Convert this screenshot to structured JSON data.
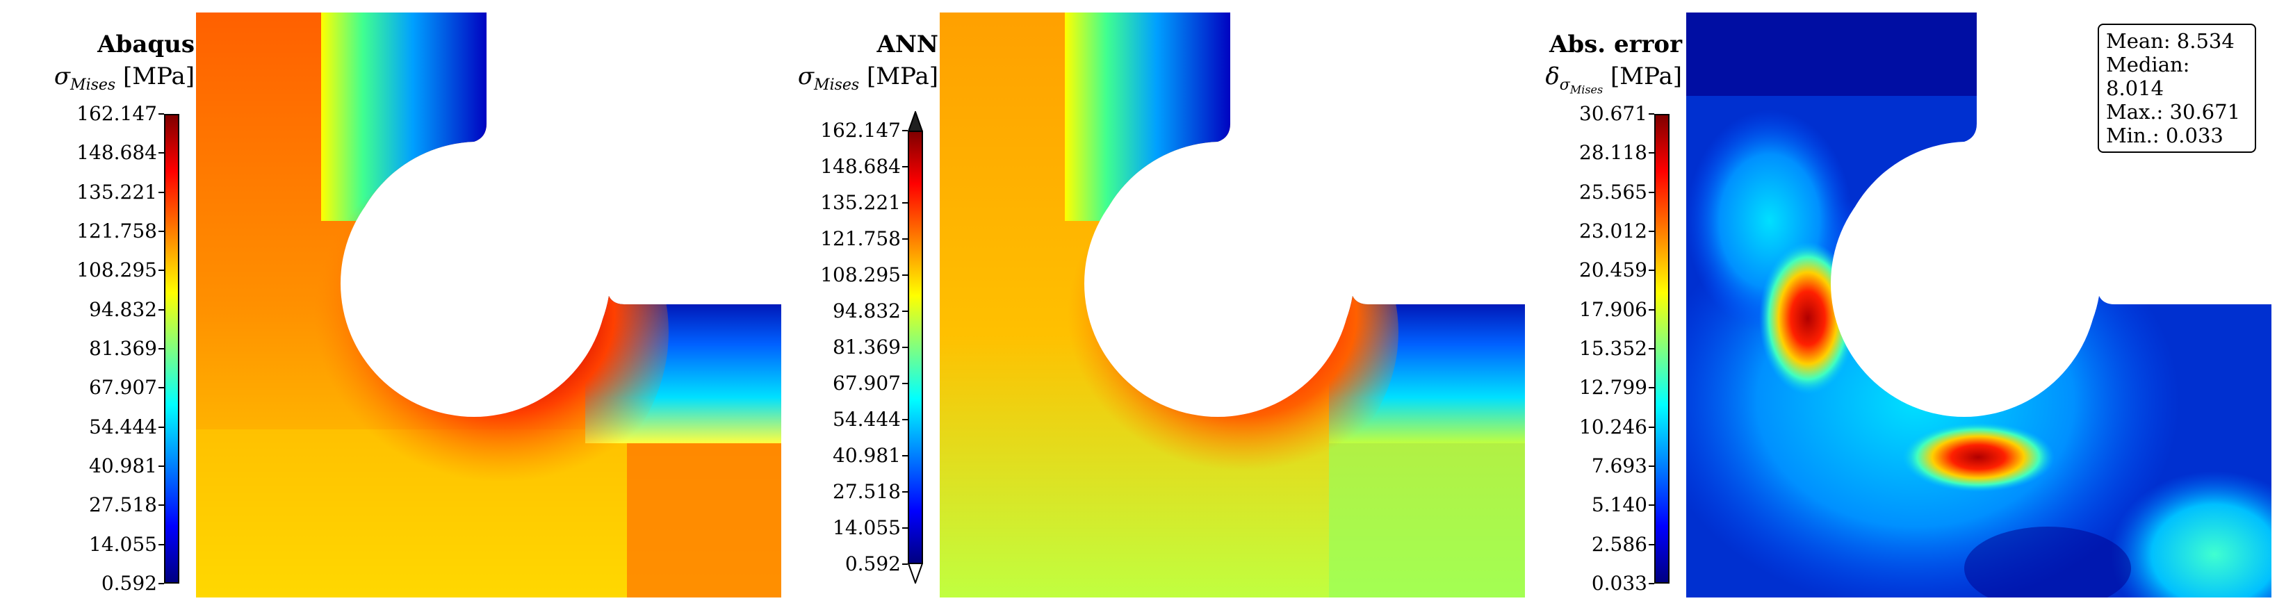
{
  "panels": [
    {
      "title": "Abaqus",
      "symbol": "σ",
      "subscript": "Mises",
      "unit": "[MPa]",
      "ticks": [
        "162.147",
        "148.684",
        "135.221",
        "121.758",
        "108.295",
        "94.832",
        "81.369",
        "67.907",
        "54.444",
        "40.981",
        "27.518",
        "14.055",
        "0.592"
      ],
      "arrows": false
    },
    {
      "title": "ANN",
      "symbol": "σ",
      "subscript": "Mises",
      "unit": "[MPa]",
      "ticks": [
        "162.147",
        "148.684",
        "135.221",
        "121.758",
        "108.295",
        "94.832",
        "81.369",
        "67.907",
        "54.444",
        "40.981",
        "27.518",
        "14.055",
        "0.592"
      ],
      "arrows": true
    },
    {
      "title": "Abs. error",
      "symbol": "δ",
      "subscript": "σ",
      "subscript2": "Mises",
      "unit": "[MPa]",
      "ticks": [
        "30.671",
        "28.118",
        "25.565",
        "23.012",
        "20.459",
        "17.906",
        "15.352",
        "12.799",
        "10.246",
        "7.693",
        "5.140",
        "2.586",
        "0.033"
      ],
      "arrows": false
    }
  ],
  "stats": {
    "mean": "Mean: 8.534",
    "median": "Median: 8.014",
    "max": "Max.: 30.671",
    "min": "Min.: 0.033"
  },
  "colormap": "jet"
}
